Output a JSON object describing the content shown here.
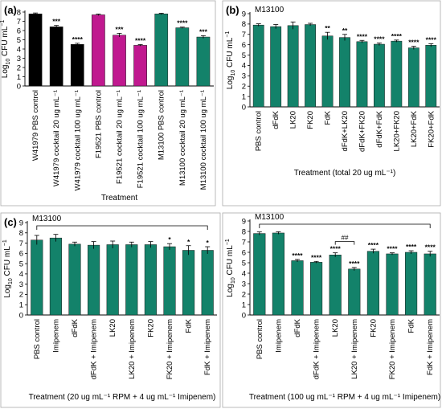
{
  "chart_data": [
    {
      "type": "bar",
      "panel_label": "(a)",
      "strain_label": "",
      "ylabel_main": "Log",
      "ylabel_sub": "10",
      "ylabel_rest": " CFU mL",
      "ylabel_sup": "−1",
      "xlabel": "Treatment",
      "ylim": [
        0,
        8
      ],
      "yticks": [
        "0",
        "1",
        "2",
        "3",
        "4",
        "5",
        "6",
        "7",
        "8"
      ],
      "categories": [
        "W41979 PBS control",
        "W41979 cocktail 20 ug mL⁻¹",
        "W41979 cocktail 100 ug mL⁻¹",
        "F19521 PBS control",
        "F19521 cocktail 20 ug mL⁻¹",
        "F19521 cocktail 100 ug mL⁻¹",
        "M13100 PBS control",
        "M13100 cocktail 20 ug mL⁻¹",
        "M13100 cocktail 100 ug mL⁻¹"
      ],
      "values": [
        7.8,
        6.4,
        4.5,
        7.7,
        5.5,
        4.4,
        7.8,
        6.3,
        5.3
      ],
      "errors": [
        0.1,
        0.15,
        0.12,
        0.08,
        0.2,
        0.08,
        0.07,
        0.07,
        0.15
      ],
      "bar_colors": [
        "#000000",
        "#000000",
        "#000000",
        "#c0198f",
        "#c0198f",
        "#c0198f",
        "#13826a",
        "#13826a",
        "#13826a"
      ],
      "annotations": [
        "",
        "***",
        "****",
        "",
        "***",
        "****",
        "",
        "****",
        "***"
      ],
      "sig_brackets": []
    },
    {
      "type": "bar",
      "panel_label": "(b)",
      "strain_label": "M13100",
      "ylabel_main": "Log",
      "ylabel_sub": "10",
      "ylabel_rest": " CFU mL",
      "ylabel_sup": "−1",
      "xlabel": "Treatment (total 20 ug mL⁻¹)",
      "ylim": [
        0,
        9
      ],
      "yticks": [
        "0",
        "1",
        "2",
        "3",
        "4",
        "5",
        "6",
        "7",
        "8",
        "9"
      ],
      "categories": [
        "PBS control",
        "dFdK",
        "LK20",
        "FK20",
        "FdK",
        "dFdK+LK20",
        "dFdK+FK20",
        "dFdK+FdK",
        "LK20+FK20",
        "LK20+FdK",
        "FK20+FdK"
      ],
      "values": [
        7.9,
        7.75,
        7.85,
        7.95,
        6.85,
        6.7,
        6.3,
        6.05,
        6.35,
        5.7,
        5.95
      ],
      "errors": [
        0.12,
        0.2,
        0.35,
        0.12,
        0.35,
        0.3,
        0.12,
        0.12,
        0.1,
        0.15,
        0.15
      ],
      "bar_colors": [
        "#13826a"
      ],
      "annotations": [
        "",
        "",
        "",
        "",
        "**",
        "**",
        "****",
        "****",
        "****",
        "****",
        "****"
      ],
      "sig_brackets": []
    },
    {
      "type": "bar",
      "panel_label": "(c)",
      "strain_label": "M13100",
      "ylabel_main": "Log",
      "ylabel_sub": "10",
      "ylabel_rest": " CFU mL",
      "ylabel_sup": "−1",
      "xlabel": "Treatment (20 ug mL⁻¹ RPM + 4 ug mL⁻¹ Imipenem)",
      "ylim": [
        0,
        9
      ],
      "yticks": [
        "0",
        "1",
        "2",
        "3",
        "4",
        "5",
        "6",
        "7",
        "8",
        "9"
      ],
      "categories": [
        "PBS control",
        "Imipenem",
        "dFdK",
        "dFdK + Imipenem",
        "LK20",
        "LK20 + Imipenem",
        "FK20",
        "FK20 + Imipenem",
        "FdK",
        "FdK + Imipenem"
      ],
      "values": [
        7.3,
        7.5,
        6.9,
        6.8,
        6.85,
        6.85,
        6.85,
        6.65,
        6.3,
        6.3
      ],
      "errors": [
        0.45,
        0.35,
        0.2,
        0.35,
        0.35,
        0.25,
        0.3,
        0.3,
        0.45,
        0.35
      ],
      "bar_colors": [
        "#13826a"
      ],
      "annotations": [
        "",
        "",
        "",
        "",
        "",
        "",
        "",
        "*",
        "*",
        "*"
      ],
      "sig_brackets": [
        {
          "from": 0,
          "to": 9,
          "label": ""
        }
      ]
    },
    {
      "type": "bar",
      "panel_label": "",
      "strain_label": "M13100",
      "ylabel_main": "Log",
      "ylabel_sub": "10",
      "ylabel_rest": " CFU mL",
      "ylabel_sup": "−1",
      "xlabel": "Treatment (100 ug mL⁻¹ RPM + 4 ug mL⁻¹ Imipenem)",
      "ylim": [
        0,
        9
      ],
      "yticks": [
        "0",
        "1",
        "2",
        "3",
        "4",
        "5",
        "6",
        "7",
        "8",
        "9"
      ],
      "categories": [
        "PBS control",
        "Imipenem",
        "dFdK",
        "dFdK + Imipenem",
        "LK20",
        "LK20 + Imipenem",
        "FK20",
        "FK20 + Imipenem",
        "FdK",
        "FdK + Imipenem"
      ],
      "values": [
        7.8,
        7.85,
        5.2,
        5.05,
        5.75,
        4.4,
        6.1,
        5.85,
        6.0,
        5.85
      ],
      "errors": [
        0.15,
        0.12,
        0.12,
        0.08,
        0.2,
        0.15,
        0.2,
        0.1,
        0.15,
        0.25
      ],
      "bar_colors": [
        "#13826a"
      ],
      "annotations": [
        "",
        "",
        "****",
        "****",
        "****",
        "****",
        "****",
        "****",
        "****",
        "****"
      ],
      "sig_brackets": [
        {
          "from": 0,
          "to": 9,
          "label": ""
        },
        {
          "from": 4,
          "to": 5,
          "label": "##"
        }
      ]
    }
  ]
}
